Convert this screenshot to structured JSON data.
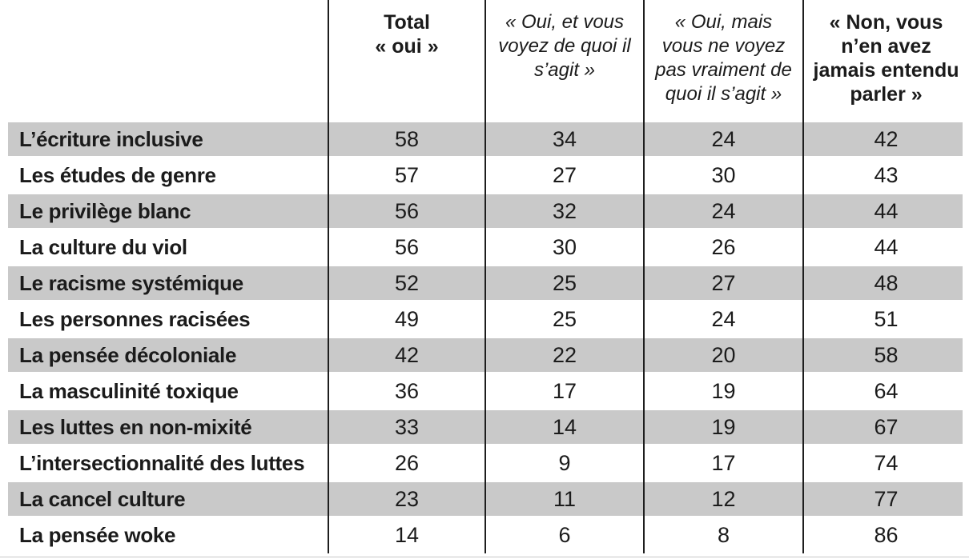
{
  "chart_data": {
    "type": "table",
    "title": "",
    "columns": {
      "empty": "",
      "total_oui": "Total\n« oui »",
      "oui_voyez": "« Oui, et vous\nvoyez de quoi il\ns’agit »",
      "oui_pas_vraiment": "« Oui, mais\nvous ne voyez\npas vraiment de\nquoi il s’agit »",
      "non_jamais": "« Non, vous\nn’en avez\njamais entendu\nparler »"
    },
    "rows": [
      {
        "label": "L’écriture inclusive",
        "values": [
          58,
          34,
          24,
          42
        ]
      },
      {
        "label": "Les études de genre",
        "values": [
          57,
          27,
          30,
          43
        ]
      },
      {
        "label": "Le privilège blanc",
        "values": [
          56,
          32,
          24,
          44
        ]
      },
      {
        "label": "La culture du viol",
        "values": [
          56,
          30,
          26,
          44
        ]
      },
      {
        "label": "Le racisme systémique",
        "values": [
          52,
          25,
          27,
          48
        ]
      },
      {
        "label": "Les personnes racisées",
        "values": [
          49,
          25,
          24,
          51
        ]
      },
      {
        "label": "La pensée décoloniale",
        "values": [
          42,
          22,
          20,
          58
        ]
      },
      {
        "label": "La masculinité toxique",
        "values": [
          36,
          17,
          19,
          64
        ]
      },
      {
        "label": "Les luttes en non-mixité",
        "values": [
          33,
          14,
          19,
          67
        ]
      },
      {
        "label": "L’intersectionnalité des luttes",
        "values": [
          26,
          9,
          17,
          74
        ]
      },
      {
        "label": "La cancel culture",
        "values": [
          23,
          11,
          12,
          77
        ]
      },
      {
        "label": "La pensée woke",
        "values": [
          14,
          6,
          8,
          86
        ]
      }
    ],
    "colors": {
      "stripe": "#c9c9c9",
      "line": "#1e1e1e",
      "text": "#1b1b1b",
      "bottom_rule": "#c6c6c6"
    },
    "layout": {
      "stripe_pattern": "odd rows shaded starting with first data row",
      "legend_position": "none",
      "grid": "vertical column dividers only"
    }
  }
}
